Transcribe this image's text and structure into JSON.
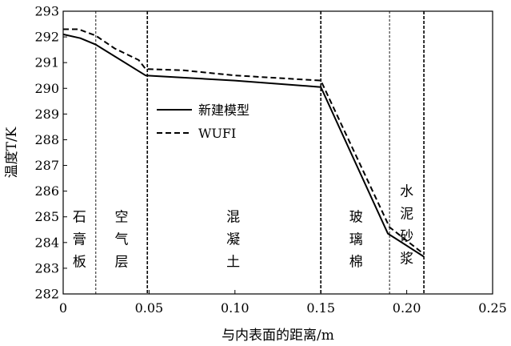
{
  "chart_data": {
    "type": "line",
    "title": "",
    "xlabel": "与内表面的距离/m",
    "ylabel": "温度T/K",
    "xlim": [
      0,
      0.25
    ],
    "ylim": [
      282,
      293
    ],
    "x_ticks": [
      0,
      0.05,
      0.1,
      0.15,
      0.2,
      0.25
    ],
    "x_tick_labels": [
      "0",
      "0.05",
      "0.10",
      "0.15",
      "0.20",
      "0.25"
    ],
    "y_ticks": [
      282,
      283,
      284,
      285,
      286,
      287,
      288,
      289,
      290,
      291,
      292,
      293
    ],
    "y_tick_labels": [
      "282",
      "283",
      "284",
      "285",
      "286",
      "287",
      "288",
      "289",
      "290",
      "291",
      "292",
      "293"
    ],
    "grid": false,
    "legend_position": "center-left",
    "series": [
      {
        "name": "新建模型",
        "style": "solid",
        "x": [
          0,
          0.01,
          0.019,
          0.048,
          0.1,
          0.15,
          0.189,
          0.21
        ],
        "y": [
          292.1,
          291.95,
          291.7,
          290.5,
          290.3,
          290.05,
          284.35,
          283.45
        ]
      },
      {
        "name": "WUFI",
        "style": "dashed",
        "x": [
          0,
          0.009,
          0.019,
          0.03,
          0.044,
          0.048,
          0.07,
          0.1,
          0.15,
          0.19,
          0.21
        ],
        "y": [
          292.3,
          292.3,
          292.05,
          291.55,
          291.1,
          290.75,
          290.7,
          290.5,
          290.3,
          284.6,
          283.55
        ]
      }
    ],
    "boundaries": [
      {
        "x": 0.019,
        "style": "thin-dashed"
      },
      {
        "x": 0.049,
        "style": "bold-dashed"
      },
      {
        "x": 0.15,
        "style": "bold-dashed"
      },
      {
        "x": 0.19,
        "style": "thin-dashed"
      },
      {
        "x": 0.21,
        "style": "bold-dashed"
      }
    ],
    "layer_labels": [
      {
        "x": 0.0095,
        "y_top": 285.0,
        "chars": [
          "石",
          "膏",
          "板"
        ]
      },
      {
        "x": 0.034,
        "y_top": 285.0,
        "chars": [
          "空",
          "气",
          "层"
        ]
      },
      {
        "x": 0.099,
        "y_top": 285.0,
        "chars": [
          "混",
          "凝",
          "土"
        ]
      },
      {
        "x": 0.1705,
        "y_top": 285.0,
        "chars": [
          "玻",
          "璃",
          "棉"
        ]
      },
      {
        "x": 0.2,
        "y_top": 286.0,
        "chars": [
          "水",
          "泥",
          "砂",
          "浆"
        ]
      }
    ]
  }
}
